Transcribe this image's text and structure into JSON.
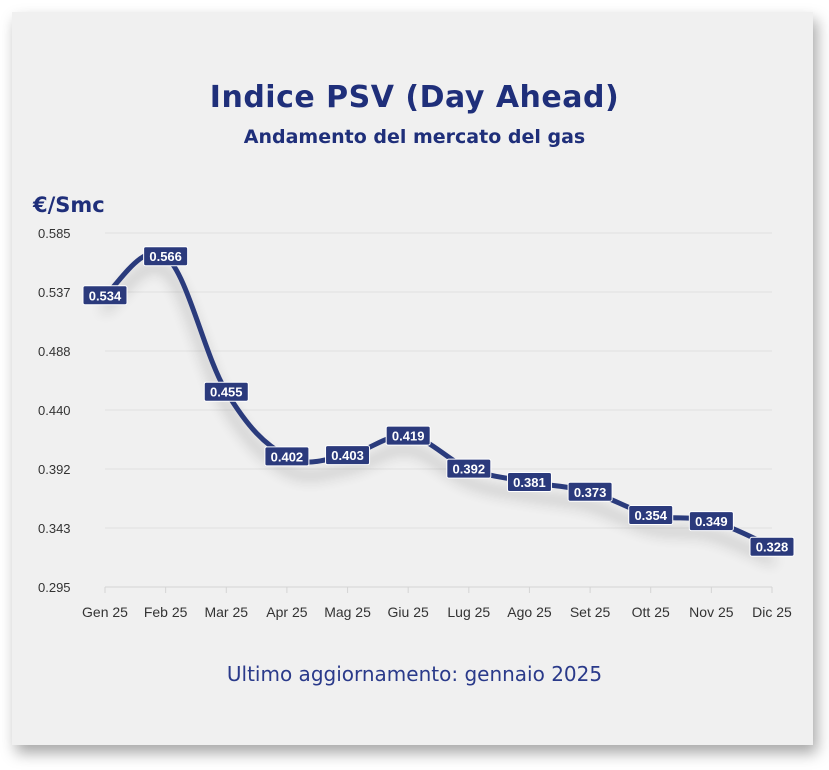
{
  "chart_data": {
    "type": "line",
    "title": "Indice PSV (Day Ahead)",
    "subtitle": "Andamento del mercato del gas",
    "ylabel": "€/Smc",
    "xlabel": "",
    "categories": [
      "Gen 25",
      "Feb 25",
      "Mar 25",
      "Apr 25",
      "Mag 25",
      "Giu 25",
      "Lug 25",
      "Ago 25",
      "Set 25",
      "Ott 25",
      "Nov 25",
      "Dic 25"
    ],
    "values": [
      0.534,
      0.566,
      0.455,
      0.402,
      0.403,
      0.419,
      0.392,
      0.381,
      0.373,
      0.354,
      0.349,
      0.328
    ],
    "data_labels": [
      "0.534",
      "0.566",
      "0.455",
      "0.402",
      "0.403",
      "0.419",
      "0.392",
      "0.381",
      "0.373",
      "0.354",
      "0.349",
      "0.328"
    ],
    "yticks": [
      "0.585",
      "0.537",
      "0.488",
      "0.440",
      "0.392",
      "0.343",
      "0.295"
    ],
    "ylim": [
      0.295,
      0.585
    ],
    "grid": true,
    "line_color": "#2b3a7c"
  },
  "footer": "Ultimo aggiornamento: gennaio 2025"
}
